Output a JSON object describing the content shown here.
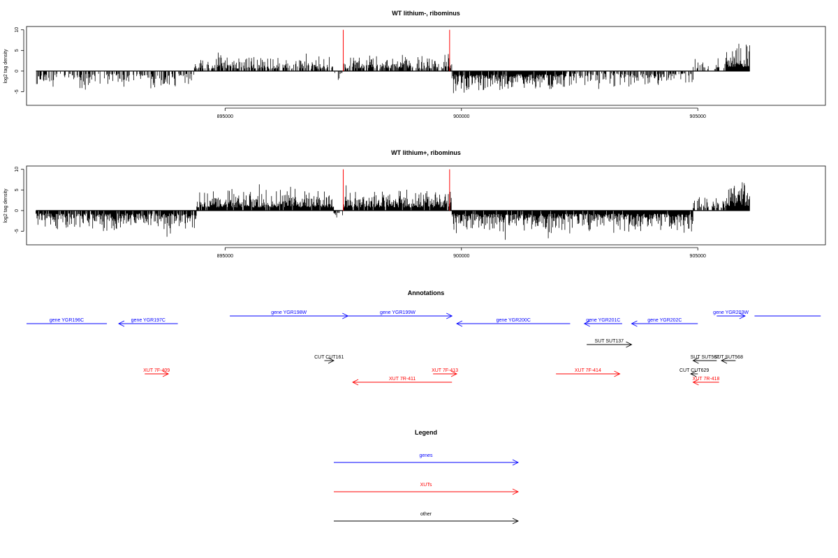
{
  "chart_data": [
    {
      "type": "bar",
      "title": "WT lithium-, ribominus",
      "ylabel": "log2 tag density",
      "xlabel": "",
      "x_range": [
        891000,
        906100
      ],
      "xlim": [
        890800,
        907700
      ],
      "ylim": [
        -8.3,
        10.8
      ],
      "yticks": [
        -5,
        0,
        5,
        10
      ],
      "xticks": [
        895000,
        900000,
        905000
      ],
      "xtick_labels": [
        "895000",
        "900000",
        "905000"
      ],
      "bar_color": "#000000",
      "highlight_color": "#ff0000",
      "highlight_positions": [
        897500,
        899750
      ],
      "highlight_value": 10,
      "segments": [
        {
          "start": 891000,
          "end": 894350,
          "sign": -1,
          "density": 0.45,
          "amp": 2.5,
          "max": 4.6
        },
        {
          "start": 894350,
          "end": 897300,
          "sign": 1,
          "density": 0.6,
          "amp": 2.2,
          "max": 4.5
        },
        {
          "start": 897300,
          "end": 897500,
          "sign": -1,
          "density": 0.3,
          "amp": 1.5,
          "max": 3.0
        },
        {
          "start": 897500,
          "end": 899800,
          "sign": 1,
          "density": 0.7,
          "amp": 2.3,
          "max": 5.5
        },
        {
          "start": 899800,
          "end": 902200,
          "sign": -1,
          "density": 0.95,
          "amp": 3.0,
          "max": 5.8
        },
        {
          "start": 902200,
          "end": 904900,
          "sign": -1,
          "density": 0.55,
          "amp": 2.2,
          "max": 4.5
        },
        {
          "start": 904900,
          "end": 905600,
          "sign": 1,
          "density": 0.35,
          "amp": 2.0,
          "max": 4.5
        },
        {
          "start": 905600,
          "end": 906100,
          "sign": 1,
          "density": 1.0,
          "amp": 4.0,
          "max": 8.0
        }
      ]
    },
    {
      "type": "bar",
      "title": "WT lithium+, ribominus",
      "ylabel": "log2 tag density",
      "xlabel": "",
      "x_range": [
        891000,
        906100
      ],
      "xlim": [
        890800,
        907700
      ],
      "ylim": [
        -8.3,
        10.8
      ],
      "yticks": [
        -5,
        0,
        5,
        10
      ],
      "xticks": [
        895000,
        900000,
        905000
      ],
      "xtick_labels": [
        "895000",
        "900000",
        "905000"
      ],
      "bar_color": "#000000",
      "highlight_color": "#ff0000",
      "highlight_positions": [
        897500,
        899750
      ],
      "highlight_value": 10,
      "segments": [
        {
          "start": 891000,
          "end": 894400,
          "sign": -1,
          "density": 0.85,
          "amp": 2.8,
          "max": 6.5
        },
        {
          "start": 894400,
          "end": 897300,
          "sign": 1,
          "density": 0.95,
          "amp": 3.0,
          "max": 6.8
        },
        {
          "start": 897300,
          "end": 897500,
          "sign": -1,
          "density": 0.4,
          "amp": 1.5,
          "max": 2.5
        },
        {
          "start": 897500,
          "end": 899800,
          "sign": 1,
          "density": 0.95,
          "amp": 3.0,
          "max": 6.2
        },
        {
          "start": 899800,
          "end": 904900,
          "sign": -1,
          "density": 0.95,
          "amp": 3.0,
          "max": 7.3
        },
        {
          "start": 904900,
          "end": 905600,
          "sign": 1,
          "density": 0.5,
          "amp": 2.0,
          "max": 4.5
        },
        {
          "start": 905600,
          "end": 906100,
          "sign": 1,
          "density": 1.0,
          "amp": 4.5,
          "max": 10.0
        }
      ]
    }
  ],
  "annotations": {
    "title": "Annotations",
    "genome_range": [
      890800,
      907700
    ],
    "colors": {
      "gene": "#0000ff",
      "xut": "#ff0000",
      "other": "#000000"
    },
    "features": [
      {
        "label": "gene YGR196C",
        "kind": "gene",
        "start": 890800,
        "end": 892500,
        "strand": "none",
        "row": 1
      },
      {
        "label": "gene YGR197C",
        "kind": "gene",
        "start": 892750,
        "end": 894000,
        "strand": "-",
        "row": 1
      },
      {
        "label": "gene YGR198W",
        "kind": "gene",
        "start": 895100,
        "end": 897600,
        "strand": "+",
        "row": 0
      },
      {
        "label": "gene YGR199W",
        "kind": "gene",
        "start": 897500,
        "end": 899800,
        "strand": "+",
        "row": 0
      },
      {
        "label": "gene YGR200C",
        "kind": "gene",
        "start": 899900,
        "end": 902300,
        "strand": "-",
        "row": 1
      },
      {
        "label": "gene YGR201C",
        "kind": "gene",
        "start": 902600,
        "end": 903400,
        "strand": "-",
        "row": 1
      },
      {
        "label": "gene YGR202C",
        "kind": "gene",
        "start": 903600,
        "end": 905000,
        "strand": "-",
        "row": 1
      },
      {
        "label": "gene YGR203W",
        "kind": "gene",
        "start": 905400,
        "end": 906000,
        "strand": "+",
        "row": 0
      },
      {
        "label": "",
        "kind": "gene",
        "start": 906200,
        "end": 907600,
        "strand": "none",
        "row": 0
      },
      {
        "label": "SUT SUT137",
        "kind": "other",
        "start": 902650,
        "end": 903600,
        "strand": "+",
        "row": 2
      },
      {
        "label": "CUT CUT161",
        "kind": "other",
        "start": 897100,
        "end": 897300,
        "strand": "+",
        "row": 3
      },
      {
        "label": "SUT SUT567",
        "kind": "other",
        "start": 904900,
        "end": 905400,
        "strand": "-",
        "row": 3
      },
      {
        "label": "SUT SUT568",
        "kind": "other",
        "start": 905500,
        "end": 905800,
        "strand": "-",
        "row": 3
      },
      {
        "label": "CUT CUT629",
        "kind": "other",
        "start": 904850,
        "end": 905000,
        "strand": "-",
        "row": 4
      },
      {
        "label": "XUT 7F-409",
        "kind": "xut",
        "start": 893300,
        "end": 893800,
        "strand": "+",
        "row": 4
      },
      {
        "label": "XUT 7F-413",
        "kind": "xut",
        "start": 899400,
        "end": 899900,
        "strand": "+",
        "row": 4
      },
      {
        "label": "XUT 7F-414",
        "kind": "xut",
        "start": 902000,
        "end": 903350,
        "strand": "+",
        "row": 4
      },
      {
        "label": "XUT 7R-411",
        "kind": "xut",
        "start": 897700,
        "end": 899800,
        "strand": "-",
        "row": 5
      },
      {
        "label": "XUT 7R-418",
        "kind": "xut",
        "start": 904900,
        "end": 905450,
        "strand": "-",
        "row": 5
      }
    ]
  },
  "legend": {
    "title": "Legend",
    "items": [
      {
        "label": "genes",
        "color": "#0000ff"
      },
      {
        "label": "XUTs",
        "color": "#ff0000"
      },
      {
        "label": "other",
        "color": "#000000"
      }
    ]
  }
}
